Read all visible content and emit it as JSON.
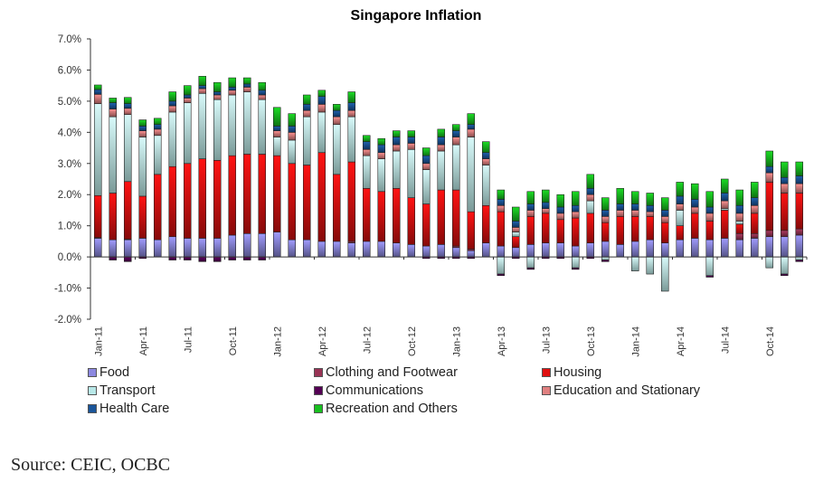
{
  "chart_data": {
    "type": "bar",
    "stacked": true,
    "title": "Singapore Inflation",
    "xlabel": "",
    "ylabel": "",
    "ylim": [
      -2.0,
      7.0
    ],
    "yticks": [
      "-2.0%",
      "-1.0%",
      "0.0%",
      "1.0%",
      "2.0%",
      "3.0%",
      "4.0%",
      "5.0%",
      "6.0%",
      "7.0%"
    ],
    "ytick_values": [
      -2,
      -1,
      0,
      1,
      2,
      3,
      4,
      5,
      6,
      7
    ],
    "xtick_labels": [
      "Jan-11",
      "Apr-11",
      "Jul-11",
      "Oct-11",
      "Jan-12",
      "Apr-12",
      "Jul-12",
      "Oct-12",
      "Jan-13",
      "Apr-13",
      "Jul-13",
      "Oct-13",
      "Jan-14",
      "Apr-14",
      "Jul-14",
      "Oct-14"
    ],
    "xtick_every": 3,
    "grid": false,
    "legend_position": "bottom",
    "categories": [
      "Jan-11",
      "Feb-11",
      "Mar-11",
      "Apr-11",
      "May-11",
      "Jun-11",
      "Jul-11",
      "Aug-11",
      "Sep-11",
      "Oct-11",
      "Nov-11",
      "Dec-11",
      "Jan-12",
      "Feb-12",
      "Mar-12",
      "Apr-12",
      "May-12",
      "Jun-12",
      "Jul-12",
      "Aug-12",
      "Sep-12",
      "Oct-12",
      "Nov-12",
      "Dec-12",
      "Jan-13",
      "Feb-13",
      "Mar-13",
      "Apr-13",
      "May-13",
      "Jun-13",
      "Jul-13",
      "Aug-13",
      "Sep-13",
      "Oct-13",
      "Nov-13",
      "Dec-13",
      "Jan-14",
      "Feb-14",
      "Mar-14",
      "Apr-14",
      "May-14",
      "Jun-14",
      "Jul-14",
      "Aug-14",
      "Sep-14",
      "Oct-14",
      "Nov-14",
      "Dec-14"
    ],
    "series": [
      {
        "name": "Food",
        "color": "#8C88E0",
        "values": [
          0.6,
          0.55,
          0.55,
          0.6,
          0.55,
          0.65,
          0.6,
          0.6,
          0.6,
          0.7,
          0.75,
          0.75,
          0.8,
          0.55,
          0.55,
          0.5,
          0.5,
          0.45,
          0.5,
          0.5,
          0.45,
          0.4,
          0.35,
          0.4,
          0.3,
          0.2,
          0.45,
          0.35,
          0.3,
          0.4,
          0.45,
          0.45,
          0.35,
          0.45,
          0.5,
          0.4,
          0.5,
          0.55,
          0.45,
          0.55,
          0.6,
          0.55,
          0.6,
          0.55,
          0.6,
          0.65,
          0.65,
          0.7
        ]
      },
      {
        "name": "Clothing and Footwear",
        "color": "#993355",
        "values": [
          0.02,
          0.0,
          0.02,
          0.0,
          0.0,
          0.0,
          0.0,
          0.0,
          0.0,
          0.0,
          0.0,
          0.0,
          0.0,
          0.0,
          0.0,
          0.0,
          0.0,
          0.05,
          0.0,
          0.0,
          0.0,
          0.0,
          0.0,
          0.0,
          0.05,
          0.05,
          0.0,
          0.0,
          0.0,
          0.0,
          0.0,
          0.0,
          0.0,
          0.0,
          0.0,
          0.0,
          0.0,
          0.0,
          0.0,
          0.0,
          0.0,
          0.0,
          0.0,
          0.2,
          0.15,
          0.2,
          0.2,
          0.2
        ]
      },
      {
        "name": "Housing",
        "color": "#E01010",
        "values": [
          1.35,
          1.5,
          1.85,
          1.35,
          2.1,
          2.25,
          2.4,
          2.55,
          2.5,
          2.55,
          2.55,
          2.55,
          2.45,
          2.45,
          2.4,
          2.85,
          2.15,
          2.55,
          1.7,
          1.6,
          1.75,
          1.5,
          1.35,
          1.75,
          1.8,
          1.2,
          1.2,
          1.1,
          0.35,
          0.9,
          0.95,
          0.75,
          0.9,
          0.95,
          0.6,
          0.9,
          0.8,
          0.75,
          0.65,
          0.45,
          0.8,
          0.6,
          0.9,
          0.3,
          0.65,
          1.55,
          1.2,
          1.15
        ]
      },
      {
        "name": "Transport",
        "color": "#B8E8E8",
        "values": [
          2.95,
          2.45,
          2.15,
          1.9,
          1.25,
          1.75,
          1.95,
          2.1,
          1.95,
          1.95,
          2.0,
          1.75,
          0.6,
          0.75,
          1.55,
          1.3,
          1.6,
          1.45,
          1.05,
          1.05,
          1.2,
          1.55,
          1.1,
          1.25,
          1.45,
          2.4,
          1.3,
          -0.55,
          0.15,
          -0.35,
          0.0,
          0.0,
          -0.35,
          0.4,
          -0.1,
          0.0,
          -0.45,
          -0.55,
          -1.1,
          0.5,
          0.0,
          -0.6,
          0.05,
          0.1,
          0.0,
          -0.35,
          -0.55,
          -0.1
        ]
      },
      {
        "name": "Communications",
        "color": "#550055",
        "values": [
          0.0,
          -0.1,
          -0.15,
          -0.05,
          0.0,
          -0.1,
          -0.1,
          -0.15,
          -0.15,
          -0.1,
          -0.1,
          -0.1,
          0.0,
          0.0,
          0.0,
          0.0,
          0.0,
          0.0,
          0.0,
          0.0,
          0.0,
          0.0,
          -0.05,
          -0.05,
          -0.05,
          -0.05,
          0.0,
          -0.05,
          -0.05,
          -0.05,
          -0.05,
          -0.05,
          -0.05,
          -0.05,
          -0.05,
          0.0,
          0.0,
          0.0,
          0.0,
          0.0,
          0.0,
          -0.05,
          0.0,
          0.0,
          0.0,
          0.0,
          -0.05,
          -0.05
        ]
      },
      {
        "name": "Education and Stationary",
        "color": "#E08080",
        "values": [
          0.3,
          0.25,
          0.2,
          0.2,
          0.2,
          0.2,
          0.15,
          0.15,
          0.15,
          0.15,
          0.15,
          0.15,
          0.2,
          0.25,
          0.2,
          0.25,
          0.25,
          0.2,
          0.2,
          0.2,
          0.2,
          0.2,
          0.2,
          0.2,
          0.25,
          0.25,
          0.2,
          0.2,
          0.15,
          0.2,
          0.15,
          0.2,
          0.2,
          0.2,
          0.2,
          0.2,
          0.2,
          0.15,
          0.2,
          0.2,
          0.2,
          0.25,
          0.25,
          0.25,
          0.25,
          0.3,
          0.3,
          0.3
        ]
      },
      {
        "name": "Health Care",
        "color": "#1A5599",
        "values": [
          0.15,
          0.2,
          0.15,
          0.15,
          0.15,
          0.15,
          0.1,
          0.1,
          0.1,
          0.1,
          0.1,
          0.15,
          0.15,
          0.2,
          0.2,
          0.25,
          0.2,
          0.25,
          0.25,
          0.25,
          0.25,
          0.2,
          0.25,
          0.25,
          0.2,
          0.15,
          0.2,
          0.2,
          0.2,
          0.2,
          0.2,
          0.2,
          0.2,
          0.2,
          0.2,
          0.2,
          0.2,
          0.2,
          0.2,
          0.25,
          0.25,
          0.2,
          0.25,
          0.25,
          0.25,
          0.2,
          0.2,
          0.25
        ]
      },
      {
        "name": "Recreation and Others",
        "color": "#18C020",
        "values": [
          0.15,
          0.15,
          0.2,
          0.2,
          0.2,
          0.3,
          0.3,
          0.3,
          0.3,
          0.3,
          0.2,
          0.25,
          0.6,
          0.4,
          0.3,
          0.2,
          0.2,
          0.35,
          0.2,
          0.2,
          0.2,
          0.2,
          0.25,
          0.25,
          0.2,
          0.35,
          0.35,
          0.3,
          0.45,
          0.4,
          0.4,
          0.4,
          0.45,
          0.45,
          0.4,
          0.5,
          0.4,
          0.4,
          0.4,
          0.45,
          0.5,
          0.5,
          0.45,
          0.5,
          0.5,
          0.5,
          0.5,
          0.45
        ]
      }
    ],
    "source": "Source: CEIC, OCBC"
  },
  "legend": {
    "items": [
      {
        "label": "Food",
        "color": "#8C88E0"
      },
      {
        "label": "Clothing and Footwear",
        "color": "#993355"
      },
      {
        "label": "Housing",
        "color": "#E01010"
      },
      {
        "label": "Transport",
        "color": "#B8E8E8"
      },
      {
        "label": "Communications",
        "color": "#550055"
      },
      {
        "label": "Education and Stationary",
        "color": "#E08080"
      },
      {
        "label": "Health Care",
        "color": "#1A5599"
      },
      {
        "label": "Recreation and Others",
        "color": "#18C020"
      }
    ]
  },
  "footer": {
    "source": "Source: CEIC, OCBC"
  }
}
